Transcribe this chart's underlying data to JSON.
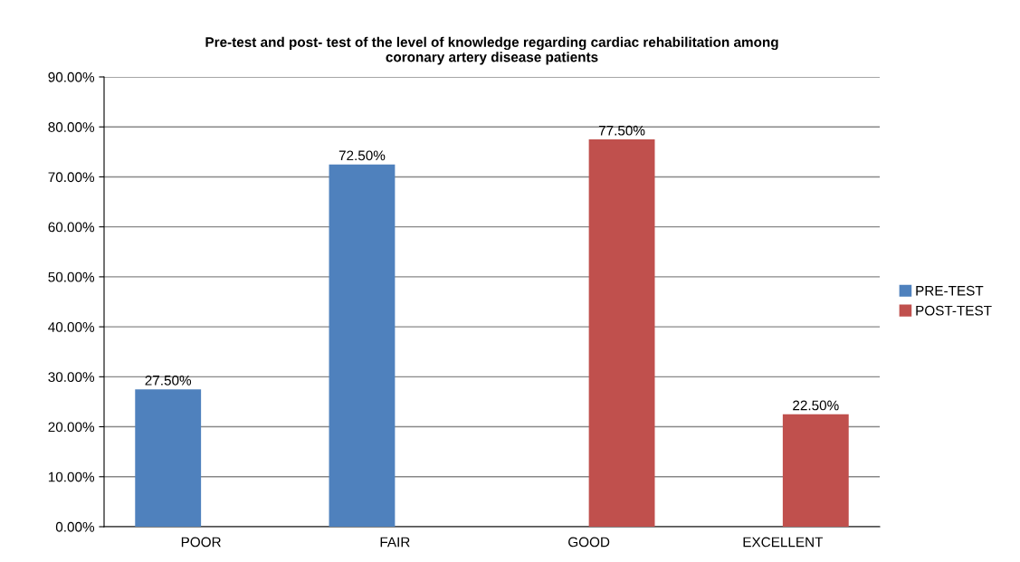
{
  "chart_data": {
    "type": "bar",
    "title": "Pre-test and post- test of the level of knowledge regarding cardiac rehabilitation among\ncoronary artery disease patients",
    "categories": [
      "POOR",
      "FAIR",
      "GOOD",
      "EXCELLENT"
    ],
    "series": [
      {
        "name": "PRE-TEST",
        "color": "#4f81bd",
        "values": [
          27.5,
          72.5,
          null,
          null
        ],
        "value_labels": [
          "27.50%",
          "72.50%",
          null,
          null
        ]
      },
      {
        "name": "POST-TEST",
        "color": "#c0504d",
        "values": [
          null,
          null,
          77.5,
          22.5
        ],
        "value_labels": [
          null,
          null,
          "77.50%",
          "22.50%"
        ]
      }
    ],
    "ylim": [
      0,
      90
    ],
    "yticks": [
      {
        "value": 0,
        "label": "0.00%"
      },
      {
        "value": 10,
        "label": "10.00%"
      },
      {
        "value": 20,
        "label": "20.00%"
      },
      {
        "value": 30,
        "label": "30.00%"
      },
      {
        "value": 40,
        "label": "40.00%"
      },
      {
        "value": 50,
        "label": "50.00%"
      },
      {
        "value": 60,
        "label": "60.00%"
      },
      {
        "value": 70,
        "label": "70.00%"
      },
      {
        "value": 80,
        "label": "80.00%"
      },
      {
        "value": 90,
        "label": "90.00%"
      }
    ],
    "grid": "y",
    "legend": "right"
  }
}
